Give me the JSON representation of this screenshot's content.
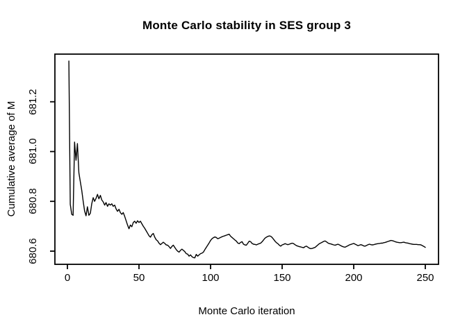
{
  "chart_data": {
    "type": "line",
    "title": "Monte Carlo stability in SES group 3",
    "xlabel": "Monte Carlo iteration",
    "ylabel": "Cumulative average of M",
    "x_tick_labels": [
      "0",
      "50",
      "100",
      "150",
      "200",
      "250"
    ],
    "x_tick_values": [
      0,
      50,
      100,
      150,
      200,
      250
    ],
    "y_tick_labels": [
      "680.6",
      "680.8",
      "681.0",
      "681.2"
    ],
    "y_tick_values": [
      680.6,
      680.8,
      681.0,
      681.2
    ],
    "xlim": [
      -9,
      260
    ],
    "ylim": [
      680.547,
      681.392
    ],
    "grid": false,
    "legend_position": "none",
    "colors": {
      "line": "#000000",
      "text": "#000000",
      "background": "#ffffff",
      "box": "#000000"
    },
    "series": [
      {
        "name": "cumulative-average-of-M",
        "x_start": 1,
        "x_step": 1,
        "values": [
          681.364,
          680.788,
          680.748,
          680.744,
          681.038,
          680.965,
          681.032,
          680.915,
          680.88,
          680.845,
          680.8,
          680.762,
          680.742,
          680.778,
          680.744,
          680.752,
          680.79,
          680.815,
          680.8,
          680.812,
          680.828,
          680.81,
          680.824,
          680.806,
          680.798,
          680.785,
          680.795,
          680.78,
          680.79,
          680.785,
          680.79,
          680.78,
          680.785,
          680.77,
          680.76,
          680.768,
          680.755,
          680.748,
          680.755,
          680.74,
          680.722,
          680.705,
          680.69,
          680.705,
          680.698,
          680.715,
          680.72,
          680.712,
          680.722,
          680.715,
          680.72,
          680.71,
          680.7,
          680.692,
          680.682,
          680.672,
          680.662,
          680.656,
          680.666,
          680.671,
          680.656,
          680.646,
          680.641,
          680.632,
          680.626,
          680.631,
          680.636,
          680.631,
          680.625,
          680.624,
          680.618,
          680.611,
          680.619,
          680.624,
          680.615,
          680.606,
          680.6,
          680.596,
          680.603,
          680.608,
          680.603,
          680.598,
          680.59,
          680.588,
          680.58,
          680.585,
          680.578,
          680.574,
          680.573,
          680.587,
          680.58,
          680.585,
          680.59,
          680.592,
          680.596,
          680.606,
          680.615,
          680.624,
          680.633,
          680.643,
          680.65,
          680.654,
          680.657,
          680.655,
          680.65,
          680.652,
          680.655,
          680.658,
          680.66,
          680.662,
          680.664,
          680.666,
          680.668,
          680.66,
          680.655,
          680.65,
          680.645,
          680.64,
          680.633,
          680.63,
          680.635,
          680.638,
          680.628,
          680.625,
          680.624,
          680.632,
          680.64,
          680.638,
          680.631,
          680.628,
          680.627,
          680.625,
          680.628,
          680.63,
          680.632,
          680.638,
          680.645,
          680.652,
          680.656,
          680.659,
          680.661,
          680.66,
          680.655,
          680.648,
          680.64,
          680.634,
          680.63,
          680.624,
          680.62,
          680.625,
          680.627,
          680.63,
          680.628,
          680.626,
          680.628,
          680.63,
          680.632,
          680.63,
          680.626,
          680.622,
          680.62,
          680.618,
          680.617,
          680.615,
          680.614,
          680.618,
          680.62,
          680.616,
          680.612,
          680.61,
          680.611,
          680.613,
          680.615,
          680.62,
          680.625,
          680.63,
          680.633,
          680.636,
          680.639,
          680.641,
          680.637,
          680.633,
          680.63,
          680.629,
          680.627,
          680.625,
          680.624,
          680.626,
          680.628,
          680.625,
          680.622,
          680.619,
          680.617,
          680.616,
          680.619,
          680.622,
          680.625,
          680.627,
          680.629,
          680.631,
          680.628,
          680.625,
          680.622,
          680.624,
          680.626,
          680.624,
          680.621,
          680.62,
          680.623,
          680.626,
          680.628,
          680.626,
          680.625,
          680.626,
          680.628,
          680.629,
          680.63,
          680.631,
          680.632,
          680.632,
          680.634,
          680.635,
          680.637,
          680.639,
          680.641,
          680.643,
          680.642,
          680.64,
          680.638,
          680.636,
          680.635,
          680.634,
          680.634,
          680.635,
          680.636,
          680.634,
          680.633,
          680.632,
          680.63,
          680.629,
          680.628,
          680.627,
          680.627,
          680.627,
          680.626,
          680.626,
          680.625,
          680.622,
          680.619,
          680.615
        ]
      }
    ]
  }
}
